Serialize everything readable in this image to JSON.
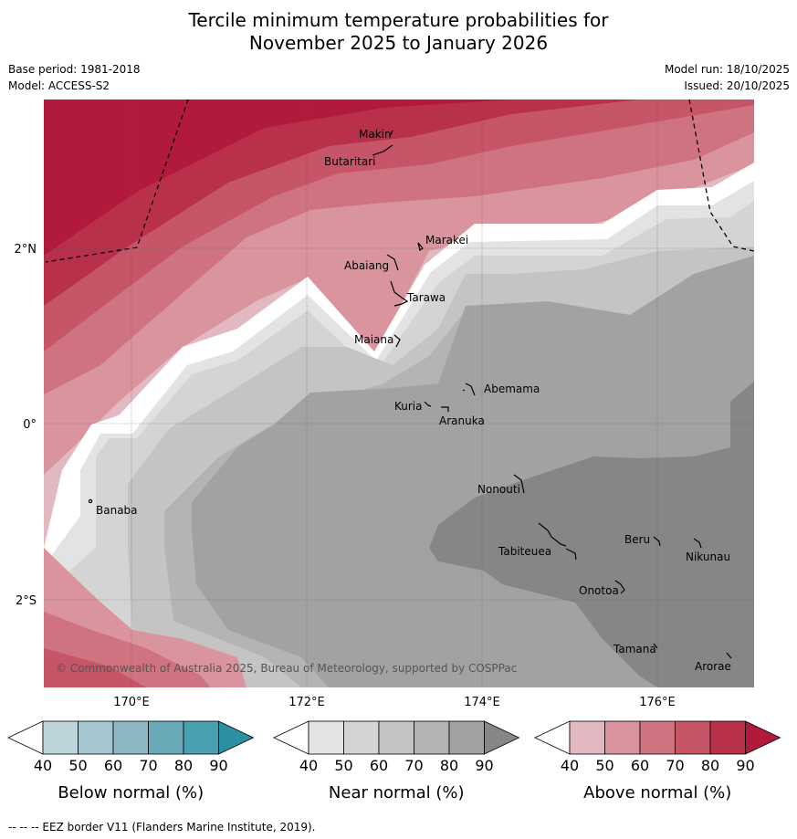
{
  "header": {
    "title_line1": "Tercile minimum temperature probabilities for",
    "title_line2": "November 2025 to January 2026",
    "base_period": "Base period: 1981-2018",
    "model": "Model: ACCESS-S2",
    "model_run": "Model run: 18/10/2025",
    "issued": "Issued: 20/10/2025"
  },
  "map": {
    "lat_labels": [
      "2°N",
      "0°",
      "2°S"
    ],
    "lon_labels": [
      "170°E",
      "172°E",
      "174°E",
      "176°E"
    ],
    "places": {
      "makin": "Makin",
      "butaritari": "Butaritari",
      "marakei": "Marakei",
      "abaiang": "Abaiang",
      "tarawa": "Tarawa",
      "maiana": "Maiana",
      "abemama": "Abemama",
      "kuria": "Kuria",
      "aranuka": "Aranuka",
      "banaba": "Banaba",
      "nonouti": "Nonouti",
      "beru": "Beru",
      "nikunau": "Nikunau",
      "tabiteuea": "Tabiteuea",
      "onotoa": "Onotoa",
      "tamana": "Tamana",
      "arorae": "Arorae"
    },
    "copyright": "© Commonwealth of Australia 2025, Bureau of Meteorology, supported by COSPPac"
  },
  "colorbars": [
    {
      "label": "Below normal (%)",
      "ticks": [
        "40",
        "50",
        "60",
        "70",
        "80",
        "90"
      ],
      "colors": [
        "#bcd4da",
        "#a6c7cf",
        "#8bb8c3",
        "#6aa9b8",
        "#48a0b0",
        "#2d8f9f"
      ]
    },
    {
      "label": "Near normal (%)",
      "ticks": [
        "40",
        "50",
        "60",
        "70",
        "80",
        "90"
      ],
      "colors": [
        "#e3e3e3",
        "#d4d4d4",
        "#c4c4c4",
        "#b4b4b4",
        "#a2a2a2",
        "#868686"
      ]
    },
    {
      "label": "Above normal (%)",
      "ticks": [
        "40",
        "50",
        "60",
        "70",
        "80",
        "90"
      ],
      "colors": [
        "#e2b9c0",
        "#d9949e",
        "#ce737f",
        "#c55567",
        "#b8304a",
        "#b21a3b"
      ]
    }
  ],
  "footnote": "--  --  -- EEZ border V11 (Flanders Marine Institute, 2019)."
}
